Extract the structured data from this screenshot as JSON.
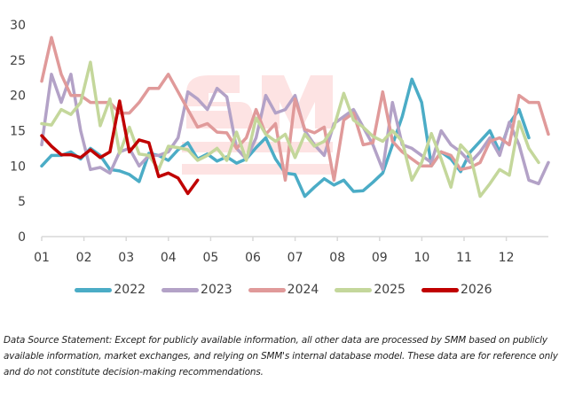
{
  "chart_data": {
    "type": "line",
    "title": "",
    "xlabel": "",
    "ylabel": "",
    "ylim": [
      0,
      30
    ],
    "yticks": [
      "0",
      "5",
      "10",
      "15",
      "20",
      "25",
      "30"
    ],
    "categories": [
      "01",
      "02",
      "03",
      "04",
      "05",
      "06",
      "07",
      "08",
      "09",
      "10",
      "11",
      "12"
    ],
    "x_unit": "week index (approx. weekly points across months 01-12)",
    "grid": false,
    "legend_position": "bottom",
    "series": [
      {
        "name": "2022",
        "color": "#4BACC6",
        "values": [
          10,
          11.5,
          11.5,
          12,
          11,
          12.5,
          11.5,
          9.5,
          9.3,
          8.8,
          7.8,
          11.8,
          11.5,
          10.8,
          12.3,
          13.3,
          11,
          11.7,
          10.7,
          11.3,
          10.4,
          11,
          12.6,
          14,
          11,
          9,
          8.8,
          5.7,
          7,
          8.2,
          7.3,
          8,
          6.4,
          6.5,
          7.7,
          9,
          13,
          17,
          22.3,
          19,
          10,
          12,
          11,
          9.2,
          12,
          13.5,
          15,
          12,
          16,
          18,
          14
        ]
      },
      {
        "name": "2023",
        "color": "#B3A2C7",
        "values": [
          13,
          23,
          19,
          23,
          15,
          9.5,
          9.8,
          9,
          12,
          12.5,
          10,
          11.5,
          11.5,
          12,
          14,
          20.5,
          19.5,
          18,
          21,
          19.8,
          12.5,
          11,
          14,
          20,
          17.5,
          18,
          20,
          15,
          13,
          11.5,
          16,
          17,
          18,
          15.5,
          13,
          9.5,
          19,
          13,
          12.5,
          11.5,
          10.5,
          15,
          13,
          12,
          10.5,
          12,
          14,
          11.5,
          16.2,
          13,
          8,
          7.5,
          10.5
        ]
      },
      {
        "name": "2024",
        "color": "#E09A9A",
        "values": [
          22,
          28.2,
          23,
          20,
          20,
          19,
          19,
          19,
          17.5,
          17.5,
          19,
          21,
          21,
          23,
          20.5,
          18,
          15.5,
          16,
          14.8,
          14.7,
          12.5,
          14,
          18,
          14.5,
          16,
          8,
          19.5,
          15.2,
          14.7,
          15.5,
          8,
          16.5,
          17.5,
          13,
          13.3,
          20.5,
          13.5,
          12,
          11,
          10,
          10,
          12,
          11.5,
          9.5,
          9.8,
          10.5,
          13.5,
          14,
          13,
          20,
          19,
          19,
          14.5
        ]
      },
      {
        "name": "2025",
        "color": "#C4D79B",
        "values": [
          16,
          15.8,
          18,
          17.3,
          19,
          24.7,
          15.7,
          19.5,
          11.8,
          15.5,
          11.7,
          11.5,
          9.5,
          12.8,
          12.6,
          12.3,
          10.8,
          11.5,
          12.5,
          10.8,
          14.8,
          10.8,
          16.8,
          14.5,
          13.5,
          14.5,
          11.2,
          14.5,
          12.8,
          13.5,
          15.5,
          20.3,
          16.5,
          15.5,
          14.2,
          13.5,
          15,
          13.5,
          8,
          10.5,
          14.6,
          11,
          7,
          13,
          11.5,
          5.7,
          7.5,
          9.5,
          8.7,
          16.3,
          12.5,
          10.5
        ]
      },
      {
        "name": "2026",
        "color": "#C00000",
        "values": [
          14.3,
          12.8,
          11.6,
          11.6,
          11.2,
          12.3,
          11.2,
          12,
          19.2,
          12,
          13.7,
          13.3,
          8.5,
          9,
          8.3,
          6.1,
          8
        ]
      }
    ]
  },
  "legend": [
    {
      "label": "2022",
      "color": "#4BACC6"
    },
    {
      "label": "2023",
      "color": "#B3A2C7"
    },
    {
      "label": "2024",
      "color": "#E09A9A"
    },
    {
      "label": "2025",
      "color": "#C4D79B"
    },
    {
      "label": "2026",
      "color": "#C00000"
    }
  ],
  "watermark_text": "SMM 上海有色网",
  "note": "Data Source Statement: Except for publicly available information, all other data are processed by SMM based on publicly available information, market exchanges, and relying on SMM's internal database model. These data are for reference only and do not constitute decision-making recommendations."
}
